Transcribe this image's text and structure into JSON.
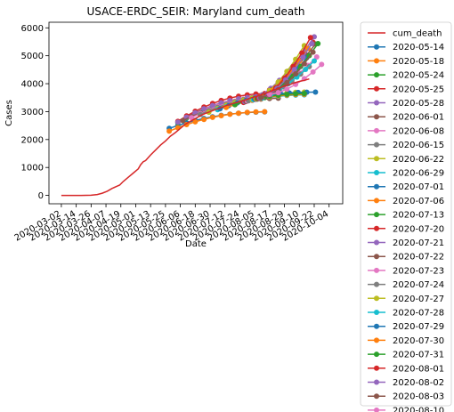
{
  "chart_data": {
    "type": "line",
    "title": "USACE-ERDC_SEIR: Maryland cum_death",
    "xlabel": "Date",
    "ylabel": "Cases",
    "ylim": [
      -300,
      6200
    ],
    "xlim": [
      "2020-02-21",
      "2020-10-15"
    ],
    "yticks": [
      0,
      1000,
      2000,
      3000,
      4000,
      5000,
      6000
    ],
    "xticks": [
      "2020-03-02",
      "2020-03-14",
      "2020-03-26",
      "2020-04-07",
      "2020-04-19",
      "2020-05-01",
      "2020-05-13",
      "2020-05-25",
      "2020-06-06",
      "2020-06-18",
      "2020-06-30",
      "2020-07-12",
      "2020-07-24",
      "2020-08-05",
      "2020-08-17",
      "2020-08-29",
      "2020-09-10",
      "2020-09-22",
      "2020-10-04"
    ],
    "grid": false,
    "legend_position": "right-outside",
    "actual": {
      "name": "cum_death",
      "color": "#d62728",
      "points": [
        [
          "2020-03-02",
          0
        ],
        [
          "2020-03-18",
          0
        ],
        [
          "2020-03-26",
          5
        ],
        [
          "2020-03-31",
          30
        ],
        [
          "2020-04-04",
          80
        ],
        [
          "2020-04-08",
          150
        ],
        [
          "2020-04-12",
          250
        ],
        [
          "2020-04-16",
          330
        ],
        [
          "2020-04-18",
          370
        ],
        [
          "2020-04-21",
          500
        ],
        [
          "2020-04-25",
          650
        ],
        [
          "2020-04-29",
          800
        ],
        [
          "2020-05-03",
          950
        ],
        [
          "2020-05-05",
          1100
        ],
        [
          "2020-05-07",
          1200
        ],
        [
          "2020-05-09",
          1250
        ],
        [
          "2020-05-13",
          1450
        ],
        [
          "2020-05-17",
          1620
        ],
        [
          "2020-05-21",
          1800
        ],
        [
          "2020-05-25",
          1950
        ],
        [
          "2020-05-29",
          2120
        ],
        [
          "2020-06-02",
          2250
        ],
        [
          "2020-06-06",
          2400
        ],
        [
          "2020-06-10",
          2550
        ],
        [
          "2020-06-14",
          2650
        ],
        [
          "2020-06-18",
          2750
        ],
        [
          "2020-06-22",
          2850
        ],
        [
          "2020-06-26",
          2930
        ],
        [
          "2020-06-30",
          3000
        ],
        [
          "2020-07-04",
          3070
        ],
        [
          "2020-07-08",
          3130
        ],
        [
          "2020-07-12",
          3200
        ],
        [
          "2020-07-16",
          3260
        ],
        [
          "2020-07-20",
          3310
        ],
        [
          "2020-07-24",
          3360
        ],
        [
          "2020-07-28",
          3410
        ],
        [
          "2020-08-01",
          3480
        ],
        [
          "2020-08-05",
          3530
        ],
        [
          "2020-08-09",
          3580
        ],
        [
          "2020-08-13",
          3650
        ],
        [
          "2020-08-17",
          3710
        ],
        [
          "2020-08-21",
          3780
        ],
        [
          "2020-08-25",
          3850
        ],
        [
          "2020-08-29",
          3910
        ],
        [
          "2020-09-02",
          3960
        ],
        [
          "2020-09-06",
          4030
        ],
        [
          "2020-09-10",
          4080
        ],
        [
          "2020-09-14",
          4120
        ],
        [
          "2020-09-18",
          4170
        ]
      ]
    },
    "series": [
      {
        "name": "2020-05-14",
        "color": "#1f77b4",
        "start": "2020-05-28",
        "end": "2020-08-18",
        "y0": 2400,
        "y1": 2990
      },
      {
        "name": "2020-05-18",
        "color": "#ff7f0e",
        "start": "2020-05-28",
        "end": "2020-08-18",
        "y0": 2300,
        "y1": 3000
      },
      {
        "name": "2020-05-24",
        "color": "#2ca02c",
        "start": "2020-06-04",
        "end": "2020-08-18",
        "y0": 2600,
        "y1": 3500
      },
      {
        "name": "2020-05-25",
        "color": "#d62728",
        "start": "2020-06-04",
        "end": "2020-08-18",
        "y0": 2650,
        "y1": 3650
      },
      {
        "name": "2020-05-28",
        "color": "#9467bd",
        "start": "2020-06-04",
        "end": "2020-08-18",
        "y0": 2620,
        "y1": 3550
      },
      {
        "name": "2020-06-01",
        "color": "#8c564b",
        "start": "2020-06-08",
        "end": "2020-08-29",
        "y0": 2680,
        "y1": 3480
      },
      {
        "name": "2020-06-08",
        "color": "#e377c2",
        "start": "2020-06-15",
        "end": "2020-09-05",
        "y0": 2780,
        "y1": 3620
      },
      {
        "name": "2020-06-15",
        "color": "#7f7f7f",
        "start": "2020-06-22",
        "end": "2020-09-12",
        "y0": 2900,
        "y1": 3650
      },
      {
        "name": "2020-06-22",
        "color": "#bcbd22",
        "start": "2020-06-29",
        "end": "2020-09-19",
        "y0": 2980,
        "y1": 3700
      },
      {
        "name": "2020-06-29",
        "color": "#17becf",
        "start": "2020-07-06",
        "end": "2020-09-19",
        "y0": 3070,
        "y1": 3600
      },
      {
        "name": "2020-07-01",
        "color": "#1f77b4",
        "start": "2020-07-08",
        "end": "2020-09-23",
        "y0": 3100,
        "y1": 3700
      },
      {
        "name": "2020-07-06",
        "color": "#ff7f0e",
        "start": "2020-07-13",
        "end": "2020-09-19",
        "y0": 3150,
        "y1": 3620
      },
      {
        "name": "2020-07-13",
        "color": "#2ca02c",
        "start": "2020-07-20",
        "end": "2020-09-19",
        "y0": 3250,
        "y1": 3650
      },
      {
        "name": "2020-07-20",
        "color": "#d62728",
        "start": "2020-07-27",
        "end": "2020-09-26",
        "y0": 3330,
        "y1": 5800
      },
      {
        "name": "2020-07-21",
        "color": "#9467bd",
        "start": "2020-07-28",
        "end": "2020-09-26",
        "y0": 3350,
        "y1": 5950
      },
      {
        "name": "2020-07-22",
        "color": "#8c564b",
        "start": "2020-07-29",
        "end": "2020-09-26",
        "y0": 3360,
        "y1": 5600
      },
      {
        "name": "2020-07-23",
        "color": "#e377c2",
        "start": "2020-07-30",
        "end": "2020-09-26",
        "y0": 3380,
        "y1": 5050
      },
      {
        "name": "2020-07-24",
        "color": "#7f7f7f",
        "start": "2020-07-31",
        "end": "2020-09-19",
        "y0": 3390,
        "y1": 4650
      },
      {
        "name": "2020-07-27",
        "color": "#bcbd22",
        "start": "2020-08-03",
        "end": "2020-09-19",
        "y0": 3420,
        "y1": 5750
      },
      {
        "name": "2020-07-28",
        "color": "#17becf",
        "start": "2020-08-04",
        "end": "2020-09-26",
        "y0": 3430,
        "y1": 5000
      },
      {
        "name": "2020-07-29",
        "color": "#1f77b4",
        "start": "2020-08-05",
        "end": "2020-09-19",
        "y0": 3450,
        "y1": 5100
      },
      {
        "name": "2020-07-30",
        "color": "#ff7f0e",
        "start": "2020-08-06",
        "end": "2020-09-19",
        "y0": 3460,
        "y1": 5400
      },
      {
        "name": "2020-07-31",
        "color": "#2ca02c",
        "start": "2020-08-07",
        "end": "2020-09-26",
        "y0": 3470,
        "y1": 5500
      },
      {
        "name": "2020-08-01",
        "color": "#d62728",
        "start": "2020-08-08",
        "end": "2020-09-19",
        "y0": 3480,
        "y1": 5650
      },
      {
        "name": "2020-08-02",
        "color": "#9467bd",
        "start": "2020-08-09",
        "end": "2020-09-26",
        "y0": 3490,
        "y1": 5900
      },
      {
        "name": "2020-08-03",
        "color": "#8c564b",
        "start": "2020-08-10",
        "end": "2020-09-26",
        "y0": 3500,
        "y1": 5450
      },
      {
        "name": "2020-08-10",
        "color": "#e377c2",
        "start": "2020-08-17",
        "end": "2020-10-03",
        "y0": 3620,
        "y1": 4900
      }
    ]
  }
}
